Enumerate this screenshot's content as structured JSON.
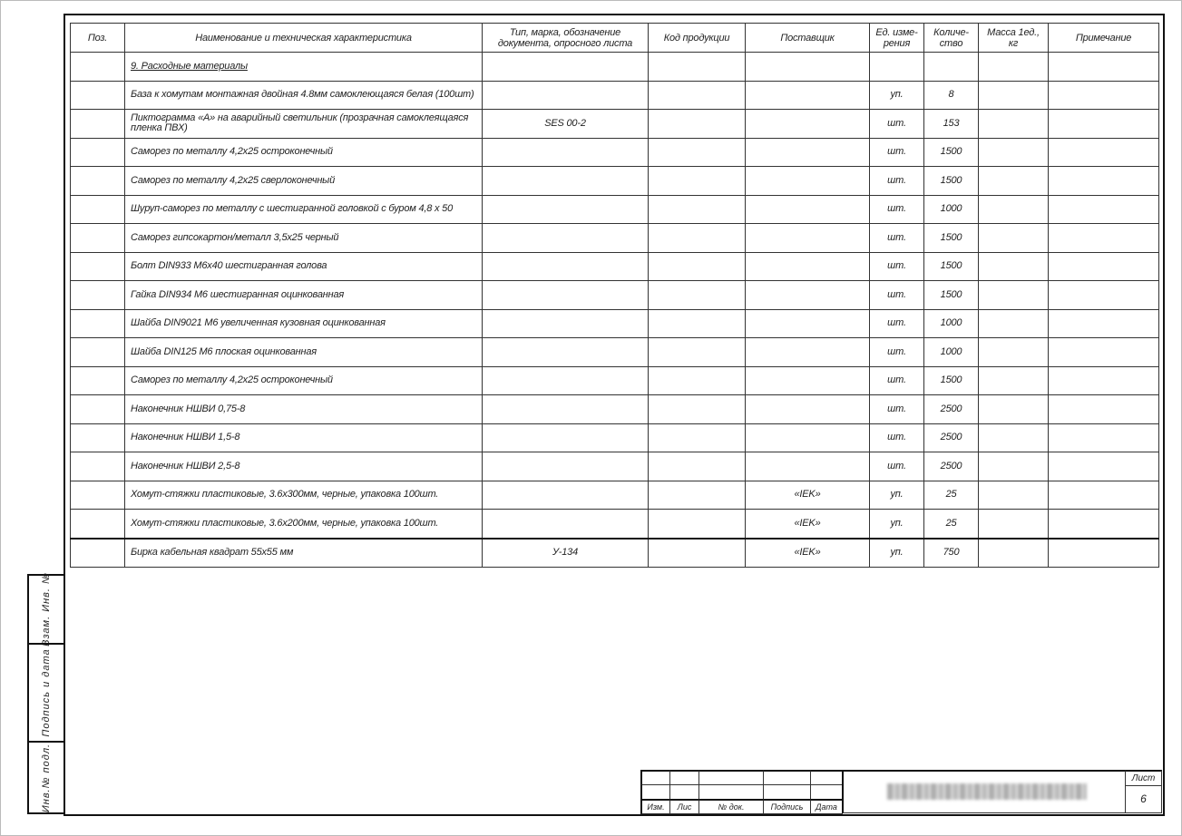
{
  "table": {
    "headers": [
      "Поз.",
      "Наименование и техническая характеристика",
      "Тип, марка, обозначение документа, опросного листа",
      "Код продукции",
      "Поставщик",
      "Ед. изме- рения",
      "Количе- ство",
      "Масса 1ед., кг",
      "Примечание"
    ],
    "section_title": "9. Расходные материалы",
    "rows": [
      {
        "name": "База к хомутам монтажная двойная 4.8мм самоклеющаяся белая (100шт)",
        "type": "",
        "supplier": "",
        "unit": "уп.",
        "qty": "8"
      },
      {
        "name": "Пиктограмма «А» на аварийный светильник (прозрачная самоклеящаяся пленка ПВХ)",
        "type": "SES 00-2",
        "supplier": "",
        "unit": "шт.",
        "qty": "153"
      },
      {
        "name": "Саморез по металлу 4,2х25 остроконечный",
        "type": "",
        "supplier": "",
        "unit": "шт.",
        "qty": "1500"
      },
      {
        "name": "Саморез по металлу 4,2х25 сверлоконечный",
        "type": "",
        "supplier": "",
        "unit": "шт.",
        "qty": "1500"
      },
      {
        "name": "Шуруп-саморез по металлу с шестигранной головкой с буром 4,8 х 50",
        "type": "",
        "supplier": "",
        "unit": "шт.",
        "qty": "1000"
      },
      {
        "name": "Саморез гипсокартон/металл 3,5х25 черный",
        "type": "",
        "supplier": "",
        "unit": "шт.",
        "qty": "1500"
      },
      {
        "name": "Болт DIN933 M6x40 шестигранная голова",
        "type": "",
        "supplier": "",
        "unit": "шт.",
        "qty": "1500"
      },
      {
        "name": "Гайка DIN934 М6 шестигранная оцинкованная",
        "type": "",
        "supplier": "",
        "unit": "шт.",
        "qty": "1500"
      },
      {
        "name": "Шайба DIN9021 М6 увеличенная кузовная оцинкованная",
        "type": "",
        "supplier": "",
        "unit": "шт.",
        "qty": "1000"
      },
      {
        "name": "Шайба DIN125 М6 плоская оцинкованная",
        "type": "",
        "supplier": "",
        "unit": "шт.",
        "qty": "1000"
      },
      {
        "name": "Саморез по металлу 4,2х25 остроконечный",
        "type": "",
        "supplier": "",
        "unit": "шт.",
        "qty": "1500"
      },
      {
        "name": "Наконечник НШВИ 0,75-8",
        "type": "",
        "supplier": "",
        "unit": "шт.",
        "qty": "2500"
      },
      {
        "name": "Наконечник НШВИ 1,5-8",
        "type": "",
        "supplier": "",
        "unit": "шт.",
        "qty": "2500"
      },
      {
        "name": "Наконечник НШВИ 2,5-8",
        "type": "",
        "supplier": "",
        "unit": "шт.",
        "qty": "2500"
      },
      {
        "name": "Хомут-стяжки пластиковые, 3.6х300мм, черные, упаковка 100шт.",
        "type": "",
        "supplier": "«IEK»",
        "unit": "уп.",
        "qty": "25"
      },
      {
        "name": "Хомут-стяжки пластиковые, 3.6х200мм, черные, упаковка 100шт.",
        "type": "",
        "supplier": "«IEK»",
        "unit": "уп.",
        "qty": "25"
      },
      {
        "name": "Бирка кабельная квадрат 55х55 мм",
        "type": "У-134",
        "supplier": "«IEK»",
        "unit": "уп.",
        "qty": "750"
      }
    ]
  },
  "side_stamp": [
    "Взам. Инв. №",
    "Подпись и дата",
    "Инв.№ подл."
  ],
  "title_block": {
    "labels": [
      "Изм.",
      "Лис",
      "№ док.",
      "Подпись",
      "Дата"
    ],
    "sheet_label": "Лист",
    "sheet_number": "6"
  }
}
